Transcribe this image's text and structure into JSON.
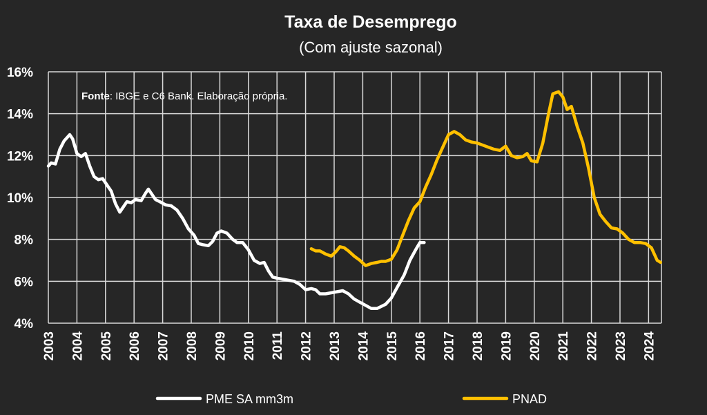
{
  "chart_data": {
    "type": "line",
    "title": "Taxa de Desemprego",
    "subtitle": "(Com ajuste sazonal)",
    "source_bold": "Fonte",
    "source_rest": ": IBGE e C6 Bank. Elaboração própria.",
    "xlabel": "",
    "ylabel": "",
    "xlim": [
      2003,
      2024.45
    ],
    "ylim": [
      4,
      16
    ],
    "yticks": [
      4,
      6,
      8,
      10,
      12,
      14,
      16
    ],
    "ytick_labels": [
      "4%",
      "6%",
      "8%",
      "10%",
      "12%",
      "14%",
      "16%"
    ],
    "xticks": [
      2003,
      2004,
      2005,
      2006,
      2007,
      2008,
      2009,
      2010,
      2011,
      2012,
      2013,
      2014,
      2015,
      2016,
      2017,
      2018,
      2019,
      2020,
      2021,
      2022,
      2023,
      2024
    ],
    "xtick_labels": [
      "2003",
      "2004",
      "2005",
      "2006",
      "2007",
      "2008",
      "2009",
      "2010",
      "2011",
      "2012",
      "2013",
      "2014",
      "2015",
      "2016",
      "2017",
      "2018",
      "2019",
      "2020",
      "2021",
      "2022",
      "2023",
      "2024"
    ],
    "grid": true,
    "legend_position": "bottom",
    "series": [
      {
        "name": "PME SA mm3m",
        "color": "#ffffff",
        "points": [
          [
            2003.0,
            11.5
          ],
          [
            2003.1,
            11.65
          ],
          [
            2003.25,
            11.6
          ],
          [
            2003.4,
            12.3
          ],
          [
            2003.55,
            12.7
          ],
          [
            2003.75,
            13.0
          ],
          [
            2003.85,
            12.8
          ],
          [
            2004.0,
            12.1
          ],
          [
            2004.15,
            11.95
          ],
          [
            2004.3,
            12.1
          ],
          [
            2004.45,
            11.5
          ],
          [
            2004.6,
            11.0
          ],
          [
            2004.75,
            10.85
          ],
          [
            2004.9,
            10.9
          ],
          [
            2005.05,
            10.6
          ],
          [
            2005.2,
            10.3
          ],
          [
            2005.35,
            9.7
          ],
          [
            2005.5,
            9.3
          ],
          [
            2005.6,
            9.5
          ],
          [
            2005.75,
            9.8
          ],
          [
            2005.9,
            9.75
          ],
          [
            2006.05,
            9.9
          ],
          [
            2006.25,
            9.85
          ],
          [
            2006.4,
            10.2
          ],
          [
            2006.5,
            10.4
          ],
          [
            2006.6,
            10.2
          ],
          [
            2006.75,
            9.9
          ],
          [
            2006.9,
            9.8
          ],
          [
            2007.1,
            9.65
          ],
          [
            2007.3,
            9.6
          ],
          [
            2007.5,
            9.4
          ],
          [
            2007.7,
            9.0
          ],
          [
            2007.9,
            8.5
          ],
          [
            2008.1,
            8.2
          ],
          [
            2008.25,
            7.8
          ],
          [
            2008.4,
            7.75
          ],
          [
            2008.6,
            7.7
          ],
          [
            2008.75,
            7.9
          ],
          [
            2008.9,
            8.3
          ],
          [
            2009.05,
            8.4
          ],
          [
            2009.25,
            8.3
          ],
          [
            2009.45,
            8.0
          ],
          [
            2009.6,
            7.85
          ],
          [
            2009.8,
            7.85
          ],
          [
            2010.0,
            7.5
          ],
          [
            2010.2,
            7.0
          ],
          [
            2010.4,
            6.85
          ],
          [
            2010.55,
            6.9
          ],
          [
            2010.7,
            6.5
          ],
          [
            2010.85,
            6.2
          ],
          [
            2011.0,
            6.15
          ],
          [
            2011.2,
            6.1
          ],
          [
            2011.4,
            6.05
          ],
          [
            2011.6,
            6.0
          ],
          [
            2011.8,
            5.85
          ],
          [
            2012.0,
            5.6
          ],
          [
            2012.2,
            5.65
          ],
          [
            2012.35,
            5.6
          ],
          [
            2012.5,
            5.4
          ],
          [
            2012.7,
            5.4
          ],
          [
            2012.9,
            5.45
          ],
          [
            2013.1,
            5.5
          ],
          [
            2013.3,
            5.55
          ],
          [
            2013.5,
            5.4
          ],
          [
            2013.7,
            5.15
          ],
          [
            2013.9,
            5.0
          ],
          [
            2014.1,
            4.85
          ],
          [
            2014.3,
            4.7
          ],
          [
            2014.5,
            4.7
          ],
          [
            2014.65,
            4.8
          ],
          [
            2014.8,
            4.9
          ],
          [
            2015.0,
            5.2
          ],
          [
            2015.2,
            5.7
          ],
          [
            2015.45,
            6.3
          ],
          [
            2015.65,
            7.0
          ],
          [
            2015.85,
            7.5
          ],
          [
            2016.0,
            7.85
          ],
          [
            2016.15,
            7.85
          ]
        ]
      },
      {
        "name": "PNAD",
        "color": "#ffc000",
        "points": [
          [
            2012.2,
            7.55
          ],
          [
            2012.35,
            7.45
          ],
          [
            2012.5,
            7.45
          ],
          [
            2012.7,
            7.3
          ],
          [
            2012.9,
            7.2
          ],
          [
            2013.05,
            7.4
          ],
          [
            2013.2,
            7.65
          ],
          [
            2013.35,
            7.6
          ],
          [
            2013.5,
            7.45
          ],
          [
            2013.7,
            7.2
          ],
          [
            2013.9,
            7.0
          ],
          [
            2014.1,
            6.75
          ],
          [
            2014.3,
            6.85
          ],
          [
            2014.5,
            6.9
          ],
          [
            2014.65,
            6.95
          ],
          [
            2014.8,
            6.95
          ],
          [
            2015.0,
            7.05
          ],
          [
            2015.2,
            7.5
          ],
          [
            2015.4,
            8.2
          ],
          [
            2015.6,
            8.9
          ],
          [
            2015.8,
            9.5
          ],
          [
            2016.0,
            9.8
          ],
          [
            2016.2,
            10.5
          ],
          [
            2016.4,
            11.1
          ],
          [
            2016.6,
            11.8
          ],
          [
            2016.8,
            12.4
          ],
          [
            2017.0,
            13.0
          ],
          [
            2017.2,
            13.15
          ],
          [
            2017.4,
            13.0
          ],
          [
            2017.6,
            12.75
          ],
          [
            2017.8,
            12.65
          ],
          [
            2018.0,
            12.6
          ],
          [
            2018.2,
            12.5
          ],
          [
            2018.4,
            12.4
          ],
          [
            2018.6,
            12.3
          ],
          [
            2018.8,
            12.25
          ],
          [
            2019.0,
            12.45
          ],
          [
            2019.2,
            12.0
          ],
          [
            2019.4,
            11.9
          ],
          [
            2019.6,
            11.95
          ],
          [
            2019.75,
            12.1
          ],
          [
            2019.9,
            11.75
          ],
          [
            2020.1,
            11.7
          ],
          [
            2020.3,
            12.6
          ],
          [
            2020.5,
            14.0
          ],
          [
            2020.65,
            14.95
          ],
          [
            2020.85,
            15.05
          ],
          [
            2021.0,
            14.8
          ],
          [
            2021.15,
            14.2
          ],
          [
            2021.3,
            14.35
          ],
          [
            2021.5,
            13.4
          ],
          [
            2021.7,
            12.6
          ],
          [
            2021.9,
            11.4
          ],
          [
            2022.1,
            10.0
          ],
          [
            2022.3,
            9.2
          ],
          [
            2022.5,
            8.85
          ],
          [
            2022.7,
            8.55
          ],
          [
            2022.9,
            8.5
          ],
          [
            2023.1,
            8.3
          ],
          [
            2023.3,
            8.0
          ],
          [
            2023.5,
            7.85
          ],
          [
            2023.7,
            7.85
          ],
          [
            2023.9,
            7.8
          ],
          [
            2024.1,
            7.6
          ],
          [
            2024.3,
            7.0
          ],
          [
            2024.42,
            6.9
          ]
        ]
      }
    ]
  }
}
